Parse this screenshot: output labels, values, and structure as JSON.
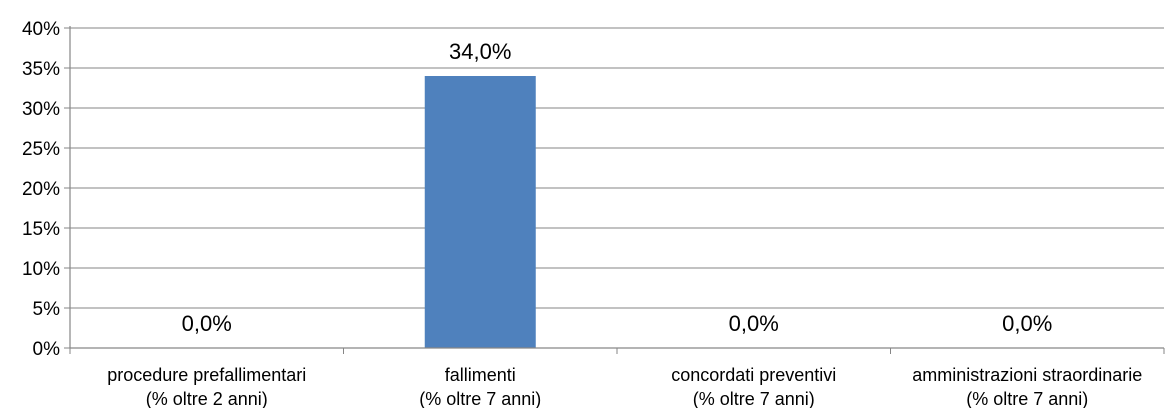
{
  "chart_data": {
    "type": "bar",
    "categories": [
      [
        "procedure prefallimentari",
        "(% oltre 2 anni)"
      ],
      [
        "fallimenti",
        "(% oltre 7 anni)"
      ],
      [
        "concordati preventivi",
        "(% oltre 7 anni)"
      ],
      [
        "amministrazioni straordinarie",
        "(% oltre 7 anni)"
      ]
    ],
    "values": [
      0,
      34,
      0,
      0
    ],
    "data_labels": [
      "0,0%",
      "34,0%",
      "0,0%",
      "0,0%"
    ],
    "ylim": [
      0,
      40
    ],
    "yticks": [
      0,
      5,
      10,
      15,
      20,
      25,
      30,
      35,
      40
    ],
    "ytick_labels": [
      "0%",
      "5%",
      "10%",
      "15%",
      "20%",
      "25%",
      "30%",
      "35%",
      "40%"
    ],
    "grid": true,
    "legend": "none",
    "bar_color": "#4f81bd",
    "grid_color": "#868686"
  }
}
